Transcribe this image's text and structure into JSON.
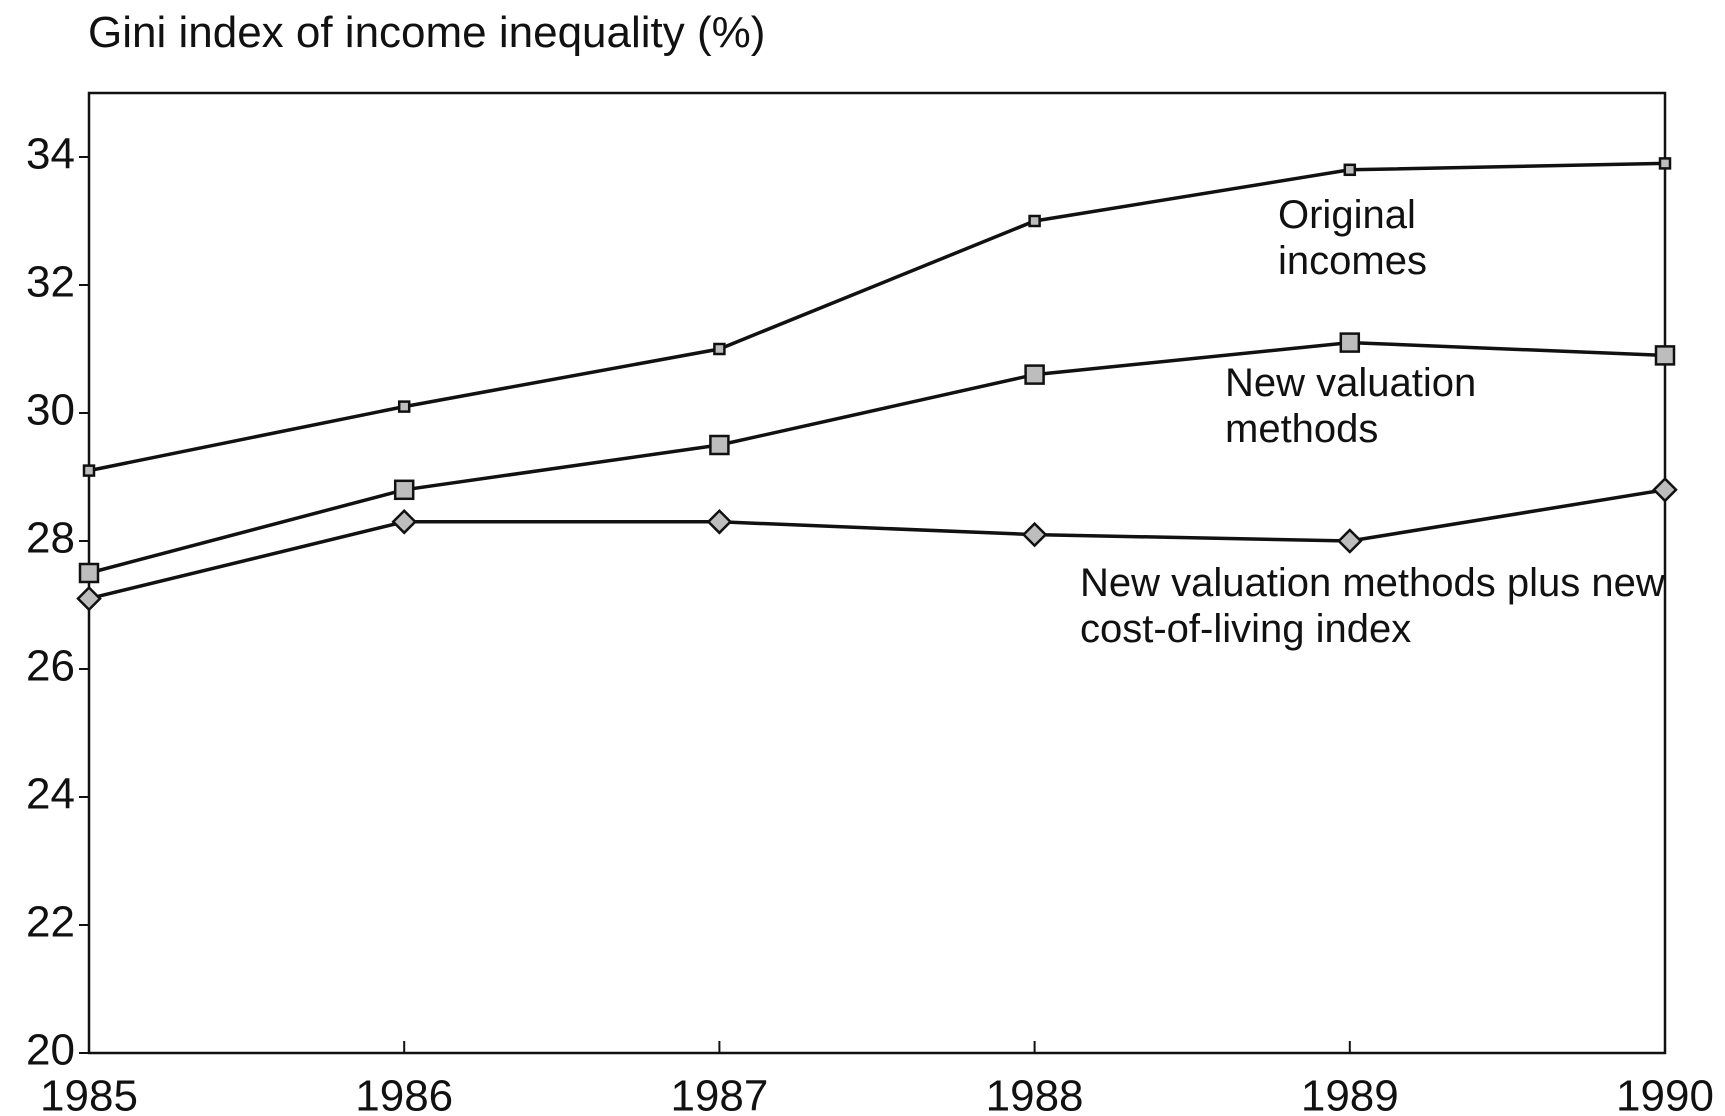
{
  "chart_data": {
    "type": "line",
    "title": "Gini index of income inequality (%)",
    "x": [
      1985,
      1986,
      1987,
      1988,
      1989,
      1990
    ],
    "xlim": [
      1985,
      1990
    ],
    "xticks": [
      1985,
      1986,
      1987,
      1988,
      1989,
      1990
    ],
    "ylim": [
      20,
      35
    ],
    "yticks": [
      20,
      22,
      24,
      26,
      28,
      30,
      32,
      34
    ],
    "grid": false,
    "series": [
      {
        "name": "Original incomes",
        "color": "#111111",
        "marker": "square",
        "values": [
          29.1,
          30.1,
          31.0,
          33.0,
          33.8,
          33.9
        ]
      },
      {
        "name": "New valuation methods",
        "color": "#111111",
        "marker": "square",
        "values": [
          27.5,
          28.8,
          29.5,
          30.6,
          31.1,
          30.9
        ]
      },
      {
        "name": "New valuation methods plus new cost-of-living index",
        "color": "#111111",
        "marker": "diamond",
        "values": [
          27.1,
          28.3,
          28.3,
          28.1,
          28.0,
          28.8
        ]
      }
    ]
  }
}
